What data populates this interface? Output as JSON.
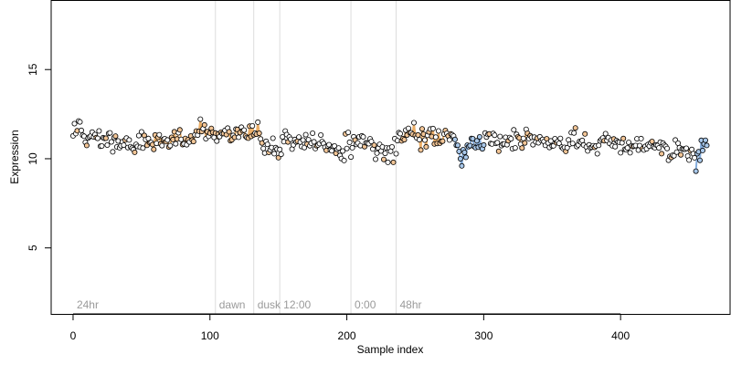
{
  "chart_data": {
    "type": "scatter",
    "title": "",
    "xlabel": "Sample index",
    "ylabel": "Expression",
    "xlim": [
      -16,
      480
    ],
    "ylim": [
      1.3,
      18.9
    ],
    "x_ticks": [
      0,
      100,
      200,
      300,
      400
    ],
    "y_ticks": [
      5,
      10,
      15
    ],
    "grid": false,
    "legend": "none",
    "colors": {
      "point_edge": "#000000",
      "point_fill_default": "#ffffff",
      "point_fill_a": "#f2c596",
      "point_fill_b": "#a9c8ea",
      "trace_orange": "#e8a04c",
      "trace_blue": "#6f9fd8",
      "phase_line": "#dddddd",
      "phase_label": "#9a9a9a"
    },
    "phases": [
      {
        "x": 0,
        "label": "24hr",
        "has_line": false
      },
      {
        "x": 104,
        "label": "dawn",
        "has_line": true
      },
      {
        "x": 132,
        "label": "dusk",
        "has_line": true
      },
      {
        "x": 151,
        "label": "12:00",
        "has_line": true
      },
      {
        "x": 203,
        "label": "0:00",
        "has_line": true
      },
      {
        "x": 236,
        "label": "48hr",
        "has_line": true
      }
    ],
    "anchors": [
      [
        1,
        11.5
      ],
      [
        5,
        11.6
      ],
      [
        8,
        11.1
      ],
      [
        14,
        11.3
      ],
      [
        20,
        11.1
      ],
      [
        28,
        11.0
      ],
      [
        35,
        10.8
      ],
      [
        42,
        10.7
      ],
      [
        50,
        10.9
      ],
      [
        56,
        11.0
      ],
      [
        62,
        10.9
      ],
      [
        68,
        11.0
      ],
      [
        75,
        11.0
      ],
      [
        82,
        11.1
      ],
      [
        90,
        11.4
      ],
      [
        96,
        11.7
      ],
      [
        100,
        11.4
      ],
      [
        104,
        11.3
      ],
      [
        110,
        11.4
      ],
      [
        120,
        11.4
      ],
      [
        130,
        11.5
      ],
      [
        135,
        11.7
      ],
      [
        137,
        10.8
      ],
      [
        142,
        10.7
      ],
      [
        148,
        10.6
      ],
      [
        152,
        10.3
      ],
      [
        155,
        11.1
      ],
      [
        160,
        11.1
      ],
      [
        170,
        11.0
      ],
      [
        180,
        10.9
      ],
      [
        190,
        10.7
      ],
      [
        195,
        10.2
      ],
      [
        200,
        10.8
      ],
      [
        205,
        11.1
      ],
      [
        212,
        11.1
      ],
      [
        218,
        10.9
      ],
      [
        224,
        10.6
      ],
      [
        228,
        10.3
      ],
      [
        233,
        10.3
      ],
      [
        236,
        10.8
      ],
      [
        240,
        11.1
      ],
      [
        245,
        11.7
      ],
      [
        250,
        11.3
      ],
      [
        255,
        11.1
      ],
      [
        260,
        11.2
      ],
      [
        265,
        11.1
      ],
      [
        270,
        11.3
      ],
      [
        275,
        11.4
      ],
      [
        280,
        10.7
      ],
      [
        284,
        10.4
      ],
      [
        290,
        10.9
      ],
      [
        296,
        10.8
      ],
      [
        302,
        11.0
      ],
      [
        310,
        10.9
      ],
      [
        320,
        11.0
      ],
      [
        330,
        11.1
      ],
      [
        340,
        11.0
      ],
      [
        350,
        10.8
      ],
      [
        360,
        11.0
      ],
      [
        370,
        10.9
      ],
      [
        380,
        10.6
      ],
      [
        390,
        11.0
      ],
      [
        400,
        10.8
      ],
      [
        410,
        10.7
      ],
      [
        420,
        10.9
      ],
      [
        430,
        10.6
      ],
      [
        440,
        10.4
      ],
      [
        448,
        10.5
      ],
      [
        455,
        10.1
      ],
      [
        459,
        10.7
      ],
      [
        463,
        10.7
      ]
    ],
    "n_points": 464,
    "noise_sd": 0.28,
    "outliers": [
      {
        "x": 198,
        "y": 9.9
      },
      {
        "x": 230,
        "y": 9.8
      },
      {
        "x": 234,
        "y": 9.8
      },
      {
        "x": 283,
        "y": 10.0
      },
      {
        "x": 284,
        "y": 9.6
      },
      {
        "x": 455,
        "y": 9.3
      }
    ],
    "traces": [
      {
        "color": "trace_orange",
        "from": 52,
        "to": 138
      },
      {
        "color": "trace_orange",
        "from": 240,
        "to": 275
      },
      {
        "color": "trace_orange",
        "from": 325,
        "to": 335
      },
      {
        "color": "trace_blue",
        "from": 279,
        "to": 300
      },
      {
        "color": "trace_blue",
        "from": 455,
        "to": 463
      }
    ]
  }
}
